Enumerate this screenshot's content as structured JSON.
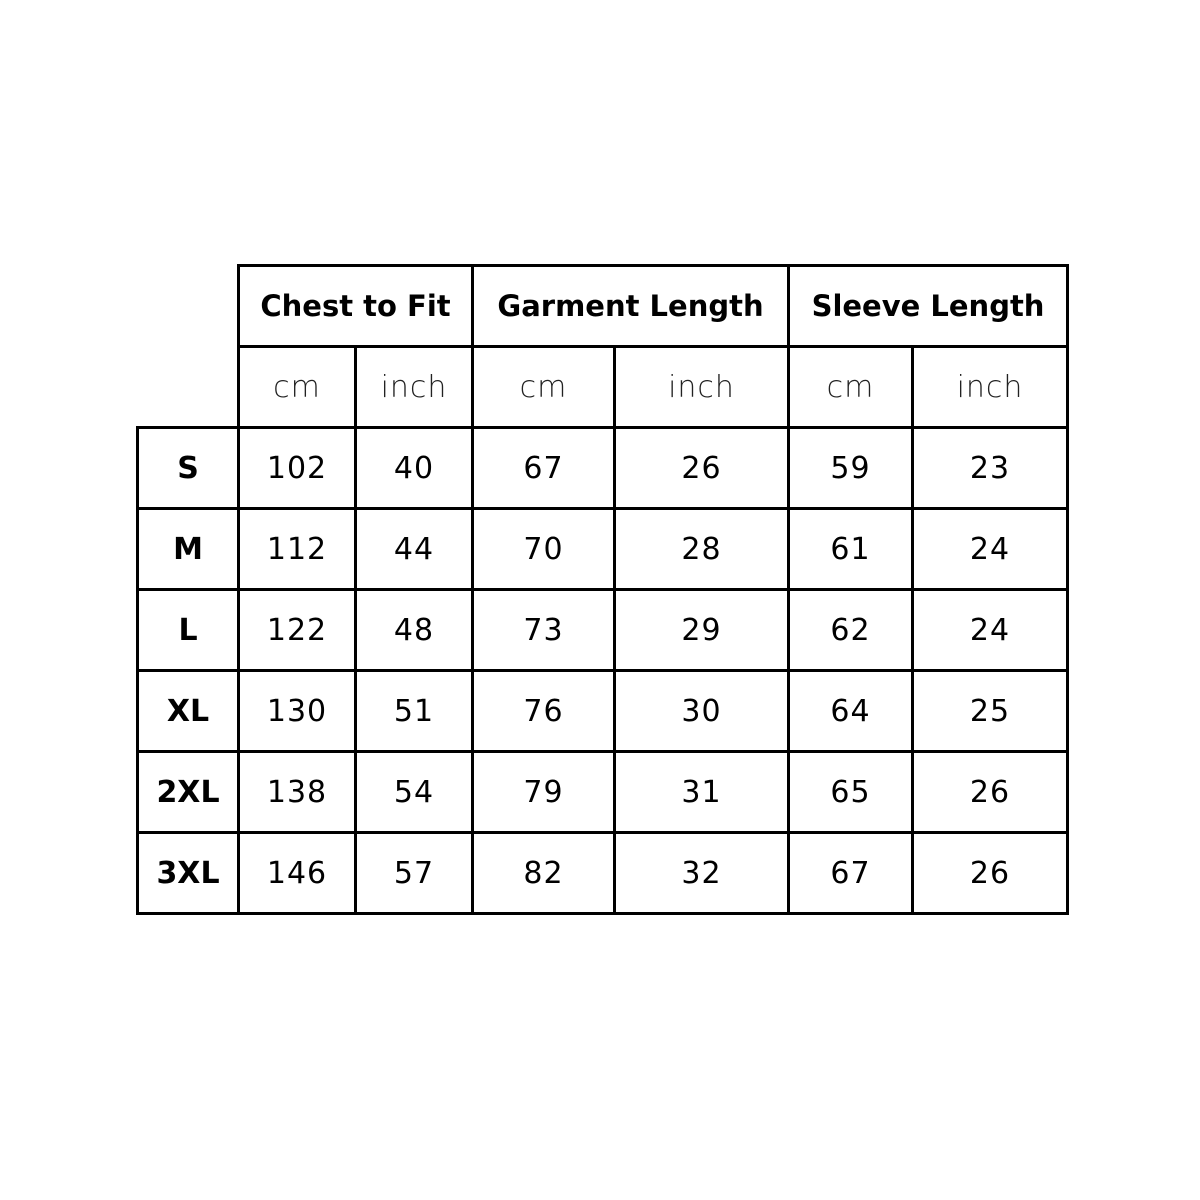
{
  "groups": [
    "Chest to Fit",
    "Garment Length",
    "Sleeve Length"
  ],
  "units": [
    "cm",
    "inch",
    "cm",
    "inch",
    "cm",
    "inch"
  ],
  "rows": [
    {
      "size": "S",
      "values": [
        "102",
        "40",
        "67",
        "26",
        "59",
        "23"
      ]
    },
    {
      "size": "M",
      "values": [
        "112",
        "44",
        "70",
        "28",
        "61",
        "24"
      ]
    },
    {
      "size": "L",
      "values": [
        "122",
        "48",
        "73",
        "29",
        "62",
        "24"
      ]
    },
    {
      "size": "XL",
      "values": [
        "130",
        "51",
        "76",
        "30",
        "64",
        "25"
      ]
    },
    {
      "size": "2XL",
      "values": [
        "138",
        "54",
        "79",
        "31",
        "65",
        "26"
      ]
    },
    {
      "size": "3XL",
      "values": [
        "146",
        "57",
        "82",
        "32",
        "67",
        "26"
      ]
    }
  ]
}
